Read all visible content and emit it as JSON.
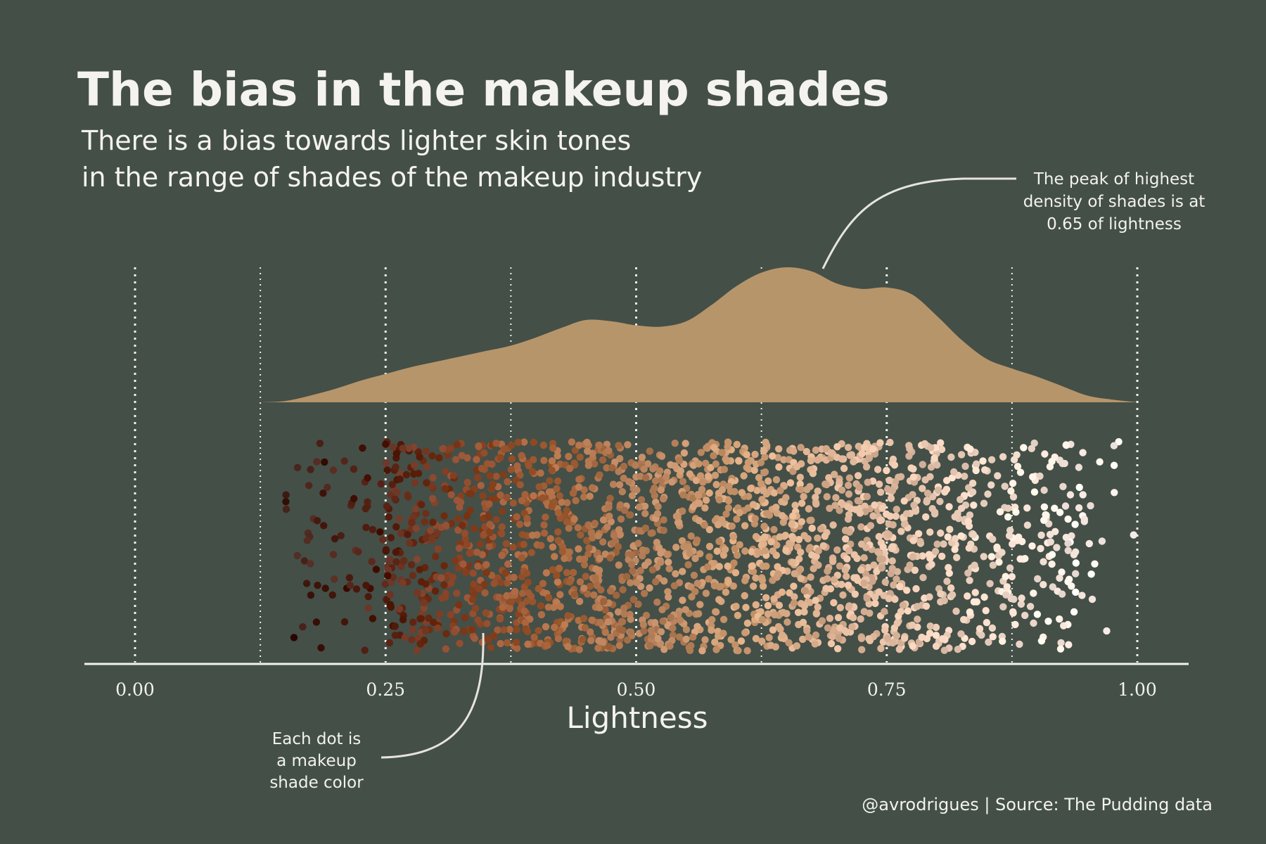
{
  "title": "The bias in the makeup shades",
  "subtitle_lines": [
    "There is a bias towards lighter skin tones",
    "in the range of shades of the makeup industry"
  ],
  "annotations": {
    "peak": {
      "lines": [
        "The peak of highest",
        "density of shades is at",
        "0.65 of lightness"
      ]
    },
    "dot": {
      "lines": [
        "Each dot is",
        "a makeup",
        "shade color"
      ]
    }
  },
  "caption": "@avrodrigues | Source: The Pudding data",
  "colors": {
    "background": "#444f47",
    "density_fill": "#b7956a",
    "text": "#f2f2ee",
    "dark_shade": "#4a1f12",
    "mid_shade": "#a8663f",
    "light_shade": "#d9b39a",
    "lightest_shade": "#fbeee6"
  },
  "chart_data": {
    "type": "scatter",
    "subtype": "density ridge over jittered strip plot",
    "xlabel": "Lightness",
    "ylabel": "",
    "xlim": [
      0,
      1
    ],
    "x_ticks": [
      "0.00",
      "0.25",
      "0.50",
      "0.75",
      "1.00"
    ],
    "x_tick_values": [
      0,
      0.25,
      0.5,
      0.75,
      1
    ],
    "minor_gridlines": [
      0.125,
      0.375,
      0.625,
      0.875
    ],
    "grid": "vertical dotted",
    "legend": "none",
    "density": {
      "x": [
        0.125,
        0.15,
        0.175,
        0.2,
        0.225,
        0.25,
        0.275,
        0.3,
        0.325,
        0.35,
        0.375,
        0.4,
        0.425,
        0.45,
        0.475,
        0.5,
        0.525,
        0.55,
        0.575,
        0.6,
        0.625,
        0.65,
        0.675,
        0.7,
        0.725,
        0.75,
        0.775,
        0.8,
        0.825,
        0.85,
        0.875,
        0.9,
        0.925,
        0.95,
        0.975,
        1.0
      ],
      "y": [
        0.0,
        0.01,
        0.05,
        0.1,
        0.16,
        0.21,
        0.26,
        0.3,
        0.34,
        0.38,
        0.42,
        0.48,
        0.55,
        0.61,
        0.6,
        0.57,
        0.56,
        0.6,
        0.72,
        0.86,
        0.96,
        1.0,
        0.97,
        0.88,
        0.84,
        0.85,
        0.8,
        0.64,
        0.46,
        0.32,
        0.25,
        0.19,
        0.12,
        0.05,
        0.02,
        0.0
      ]
    },
    "points": {
      "x_range": [
        0.16,
        1.0
      ],
      "count_estimate": 6000,
      "approx_distribution": [
        {
          "x_from": 0.15,
          "x_to": 0.25,
          "weight": 0.03
        },
        {
          "x_from": 0.25,
          "x_to": 0.375,
          "weight": 0.17
        },
        {
          "x_from": 0.375,
          "x_to": 0.5,
          "weight": 0.2
        },
        {
          "x_from": 0.5,
          "x_to": 0.625,
          "weight": 0.19
        },
        {
          "x_from": 0.625,
          "x_to": 0.75,
          "weight": 0.21
        },
        {
          "x_from": 0.75,
          "x_to": 0.84,
          "weight": 0.12
        },
        {
          "x_from": 0.84,
          "x_to": 0.94,
          "weight": 0.07
        },
        {
          "x_from": 0.94,
          "x_to": 1.0,
          "weight": 0.01
        }
      ],
      "color_encoding": "each dot drawn in its makeup shade colour; darker at low lightness, lighter at high lightness"
    },
    "peak_lightness": 0.65
  }
}
